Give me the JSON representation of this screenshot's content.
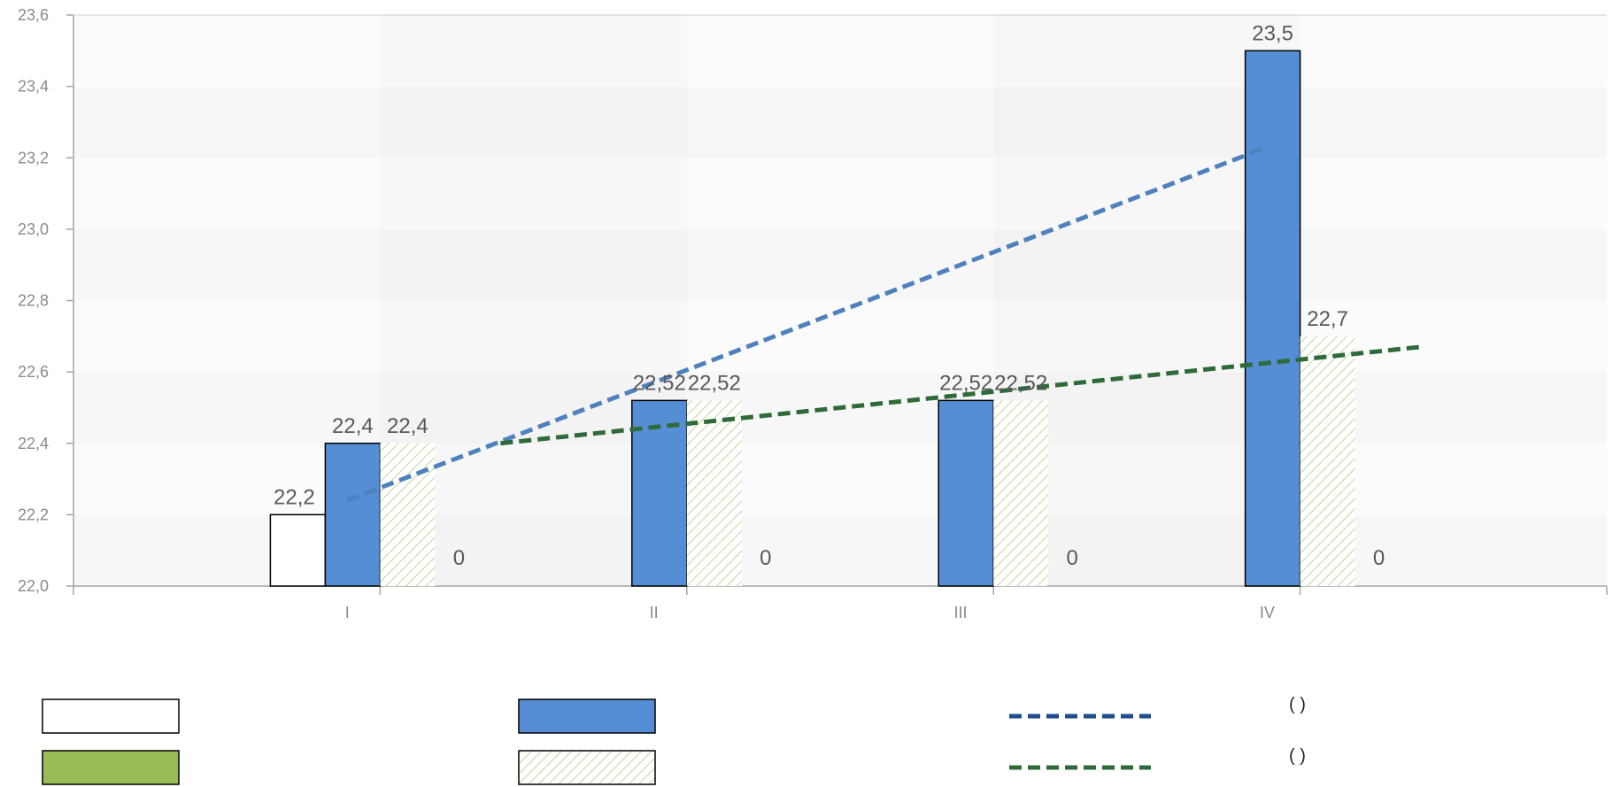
{
  "chart_data": {
    "type": "bar",
    "categories": [
      "I",
      "II",
      "III",
      "IV"
    ],
    "ylim": [
      22.0,
      23.6
    ],
    "yticks": [
      "22,0",
      "22,2",
      "22,4",
      "22,6",
      "22,8",
      "23,0",
      "23,2",
      "23,4",
      "23,6"
    ],
    "ytick_values": [
      22.0,
      22.2,
      22.4,
      22.6,
      22.8,
      23.0,
      23.2,
      23.4,
      23.6
    ],
    "decimal_separator": ",",
    "grid": true,
    "series": [
      {
        "key": "white",
        "values": [
          22.2,
          null,
          null,
          null
        ],
        "labels": [
          "22,2",
          "",
          "",
          ""
        ],
        "fill": "#ffffff",
        "stroke": "#000000"
      },
      {
        "key": "blue",
        "values": [
          22.4,
          22.52,
          22.52,
          23.5
        ],
        "labels": [
          "22,4",
          "22,52",
          "22,52",
          "23,5"
        ],
        "fill": "#558ed5",
        "stroke": "#000000"
      },
      {
        "key": "hatched",
        "values": [
          22.4,
          22.52,
          22.52,
          22.7
        ],
        "labels": [
          "22,4",
          "22,52",
          "22,52",
          "22,7"
        ],
        "fill": "hatch",
        "hatch_color": "#c3d69b"
      },
      {
        "key": "green",
        "values": [
          0,
          0,
          0,
          0
        ],
        "labels": [
          "0",
          "0",
          "0",
          "0"
        ],
        "fill": "#9bbb59",
        "stroke": "#000000"
      }
    ],
    "trendlines": [
      {
        "key": "blue-trend",
        "x_from": 0.0,
        "x_to": 3.0,
        "y_from": 22.24,
        "y_to": 23.23,
        "color": "#4f81bd",
        "dash": "dashed"
      },
      {
        "key": "green-trend",
        "x_from": 0.5,
        "x_to": 3.5,
        "y_from": 22.4,
        "y_to": 22.67,
        "color": "#2f6b3a",
        "dash": "dashed"
      }
    ],
    "legend": {
      "placement": "bottom",
      "entries": [
        {
          "kind": "box",
          "swatch": "white"
        },
        {
          "kind": "box",
          "swatch": "blue"
        },
        {
          "kind": "line",
          "color": "#1f4e8c",
          "text": "(      )"
        },
        {
          "kind": "box",
          "swatch": "green"
        },
        {
          "kind": "box",
          "swatch": "hatched"
        },
        {
          "kind": "line",
          "color": "#2f6b3a",
          "text": "(          )"
        }
      ]
    }
  }
}
